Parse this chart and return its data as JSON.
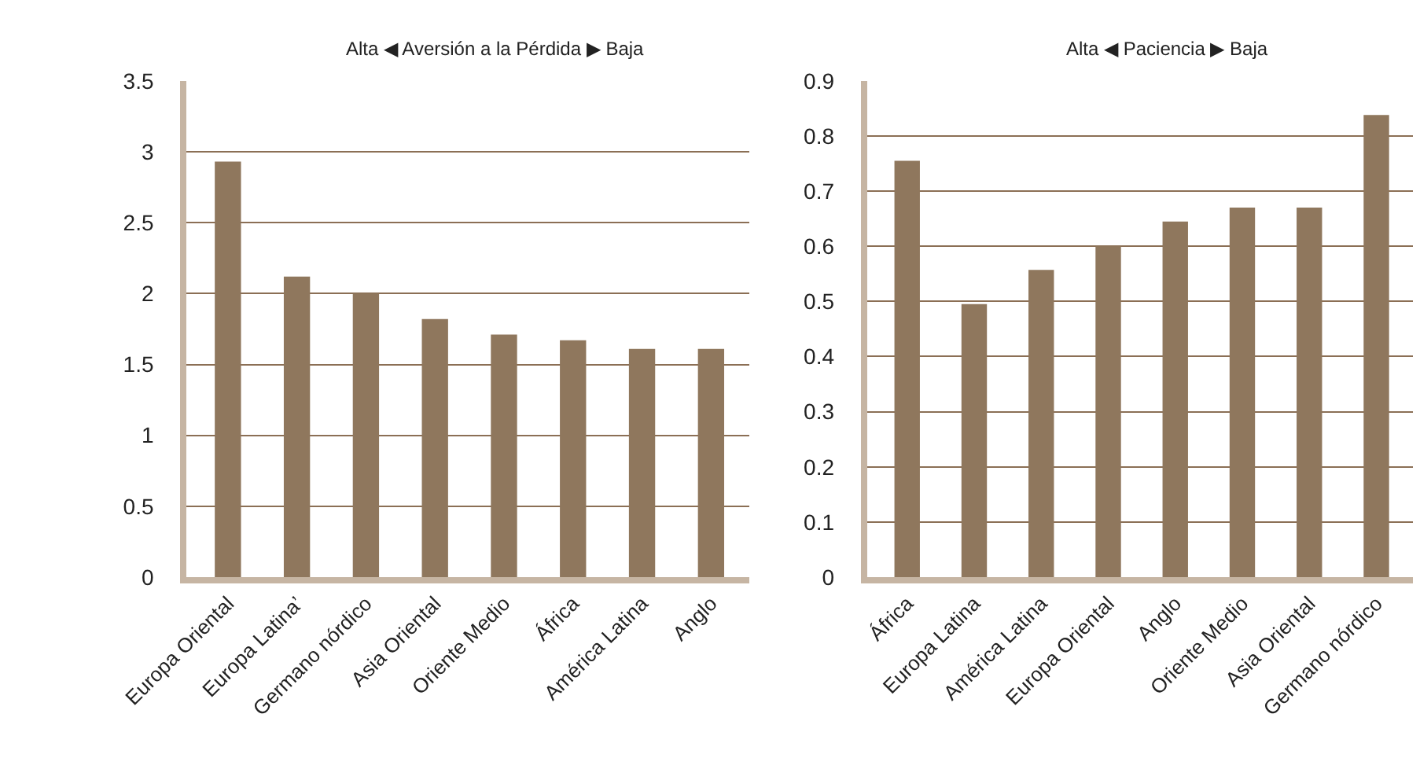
{
  "chart_data": [
    {
      "type": "bar",
      "title": "Alta ◀ Aversión a la Pérdida ▶ Baja",
      "categories": [
        "Europa Oriental",
        "Europa Latina’",
        "Germano nórdico",
        "Asia Oriental",
        "Oriente Medio",
        "África",
        "América Latina",
        "Anglo"
      ],
      "values": [
        2.93,
        2.12,
        2.0,
        1.82,
        1.71,
        1.67,
        1.61,
        1.61
      ],
      "color": "#8f775d",
      "ylim": [
        0,
        3.5
      ],
      "yticks": [
        0,
        0.5,
        1,
        1.5,
        2,
        2.5,
        3,
        3.5
      ],
      "grid": "y",
      "legend": false
    },
    {
      "type": "bar",
      "title": "Alta ◀ Paciencia ▶ Baja",
      "categories": [
        "África",
        "Europa Latina",
        "América Latina",
        "Europa Oriental",
        "Anglo",
        "Oriente Medio",
        "Asia Oriental",
        "Germano nórdico"
      ],
      "values": [
        0.755,
        0.495,
        0.557,
        0.6,
        0.645,
        0.67,
        0.67,
        0.838
      ],
      "color": "#8f775d",
      "ylim": [
        0,
        0.9
      ],
      "yticks": [
        0,
        0.1,
        0.2,
        0.3,
        0.4,
        0.5,
        0.6,
        0.7,
        0.8,
        0.9
      ],
      "grid": "y",
      "legend": false
    }
  ]
}
